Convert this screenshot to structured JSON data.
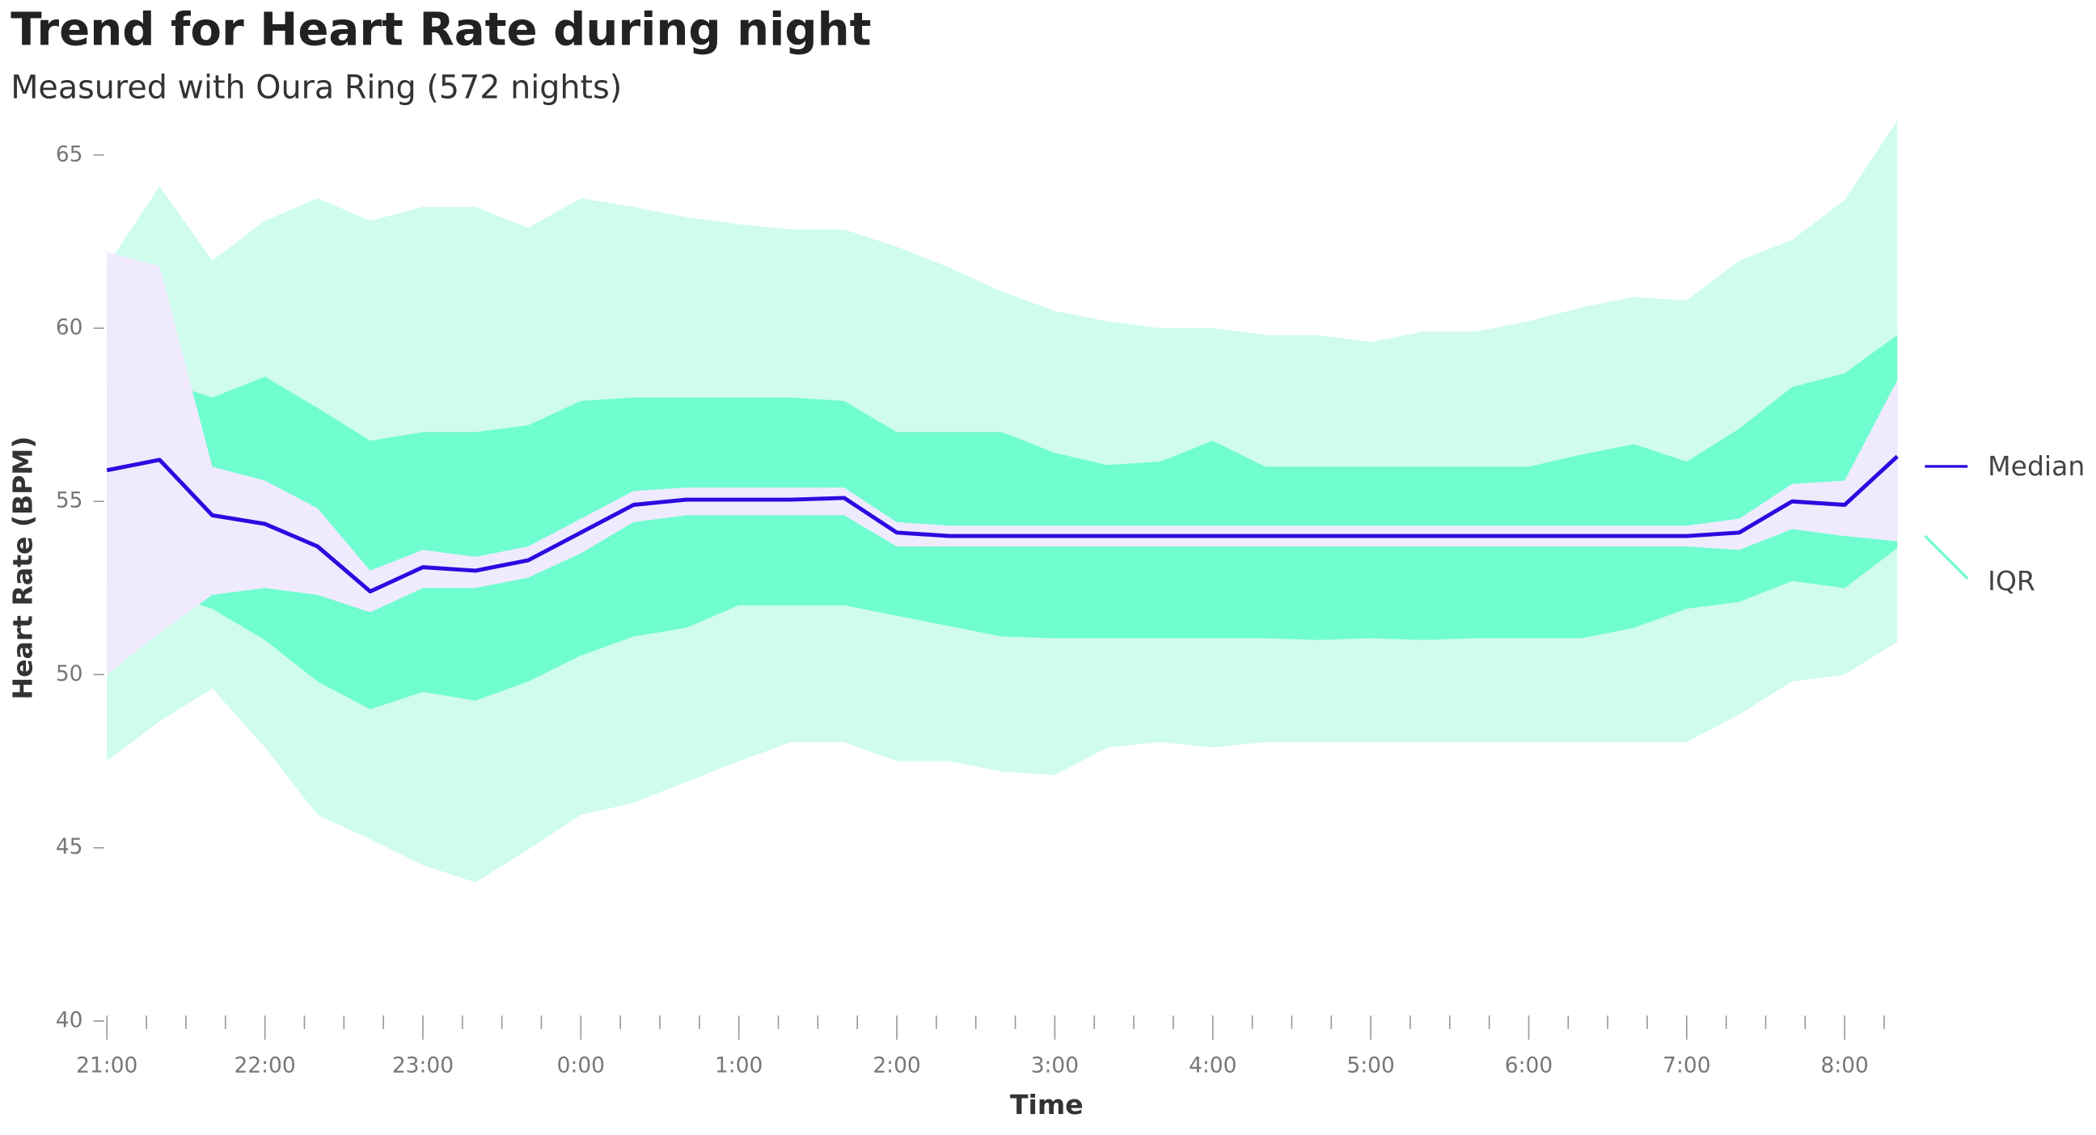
{
  "chart_data": {
    "type": "band-line",
    "title": "Trend for Heart Rate during night",
    "subtitle": "Measured with Oura Ring (572 nights)",
    "x_label": "Time",
    "y_label": "Heart Rate (BPM)",
    "x": [
      0,
      20,
      40,
      60,
      80,
      100,
      120,
      140,
      160,
      180,
      200,
      220,
      240,
      260,
      280,
      300,
      320,
      340,
      360,
      380,
      400,
      420,
      440,
      460,
      480,
      500,
      520,
      540,
      560,
      580,
      600,
      620,
      640,
      660,
      680
    ],
    "xlim": [
      0,
      685
    ],
    "xticks": [
      {
        "value": 0,
        "label": "21:00"
      },
      {
        "value": 60,
        "label": "22:00"
      },
      {
        "value": 120,
        "label": "23:00"
      },
      {
        "value": 180,
        "label": "0:00"
      },
      {
        "value": 240,
        "label": "1:00"
      },
      {
        "value": 300,
        "label": "2:00"
      },
      {
        "value": 360,
        "label": "3:00"
      },
      {
        "value": 420,
        "label": "4:00"
      },
      {
        "value": 480,
        "label": "5:00"
      },
      {
        "value": 540,
        "label": "6:00"
      },
      {
        "value": 600,
        "label": "7:00"
      },
      {
        "value": 660,
        "label": "8:00"
      }
    ],
    "xminorticks": [
      15,
      30,
      45,
      75,
      90,
      105,
      135,
      150,
      165,
      195,
      210,
      225,
      255,
      270,
      285,
      315,
      330,
      345,
      375,
      390,
      405,
      435,
      450,
      465,
      495,
      510,
      525,
      555,
      570,
      585,
      615,
      630,
      645,
      675
    ],
    "ylim": [
      40,
      65
    ],
    "yticks": [
      40,
      45,
      50,
      55,
      60,
      65
    ],
    "bands": [
      {
        "color": "#cffcec",
        "low": [
          47.5,
          48.65,
          49.6,
          47.9,
          45.95,
          45.25,
          44.5,
          44.0,
          44.95,
          45.95,
          46.3,
          46.9,
          47.5,
          48.05,
          48.05,
          47.5,
          47.5,
          47.2,
          47.1,
          47.9,
          48.05,
          47.9,
          48.05,
          48.05,
          48.05,
          48.05,
          48.05,
          48.05,
          48.05,
          48.05,
          48.05,
          48.85,
          49.8,
          50.0,
          50.95
        ],
        "high": [
          61.8,
          64.1,
          61.95,
          63.1,
          63.75,
          63.1,
          63.5,
          63.5,
          62.9,
          63.75,
          63.5,
          63.2,
          63.0,
          62.85,
          62.85,
          62.35,
          61.75,
          61.05,
          60.5,
          60.2,
          60.0,
          60.0,
          59.8,
          59.8,
          59.6,
          59.9,
          59.9,
          60.2,
          60.6,
          60.9,
          60.8,
          61.95,
          62.55,
          63.7,
          66.0
        ]
      }
    ],
    "series": [
      {
        "name": "IQR",
        "color": "#70fdd0",
        "low": [
          52.5,
          52.4,
          51.9,
          51.0,
          49.8,
          49.0,
          49.5,
          49.25,
          49.8,
          50.55,
          51.1,
          51.35,
          52.0,
          52.0,
          52.0,
          51.7,
          51.4,
          51.1,
          51.05,
          51.05,
          51.05,
          51.05,
          51.05,
          51.0,
          51.05,
          51.0,
          51.05,
          51.05,
          51.05,
          51.35,
          51.9,
          52.1,
          52.7,
          52.5,
          53.65
        ],
        "high": [
          58.5,
          58.5,
          58.0,
          58.6,
          57.7,
          56.75,
          57.0,
          57.0,
          57.2,
          57.9,
          58.0,
          58.0,
          58.0,
          58.0,
          57.9,
          57.0,
          57.0,
          57.0,
          56.4,
          56.05,
          56.15,
          56.75,
          56.0,
          56.0,
          56.0,
          56.0,
          56.0,
          56.0,
          56.35,
          56.65,
          56.15,
          57.1,
          58.3,
          58.7,
          59.8
        ]
      },
      {
        "name": "Median",
        "color": "#2a0ae0",
        "values": [
          55.9,
          56.2,
          54.6,
          54.35,
          53.7,
          52.4,
          53.1,
          53.0,
          53.3,
          54.1,
          54.9,
          55.05,
          55.05,
          55.05,
          55.1,
          54.1,
          54.0,
          54.0,
          54.0,
          54.0,
          54.0,
          54.0,
          54.0,
          54.0,
          54.0,
          54.0,
          54.0,
          54.0,
          54.0,
          54.0,
          54.0,
          54.1,
          55.0,
          54.9,
          56.3
        ]
      }
    ],
    "median_band": {
      "color": "#efeafd",
      "low": [
        50.0,
        51.2,
        52.3,
        52.5,
        52.3,
        51.8,
        52.5,
        52.5,
        52.8,
        53.5,
        54.4,
        54.6,
        54.6,
        54.6,
        54.6,
        53.7,
        53.7,
        53.7,
        53.7,
        53.7,
        53.7,
        53.7,
        53.7,
        53.7,
        53.7,
        53.7,
        53.7,
        53.7,
        53.7,
        53.7,
        53.7,
        53.6,
        54.2,
        54.0,
        53.85
      ],
      "high": [
        62.2,
        61.8,
        56.0,
        55.6,
        54.8,
        53.0,
        53.6,
        53.4,
        53.7,
        54.5,
        55.3,
        55.4,
        55.4,
        55.4,
        55.4,
        54.4,
        54.3,
        54.3,
        54.3,
        54.3,
        54.3,
        54.3,
        54.3,
        54.3,
        54.3,
        54.3,
        54.3,
        54.3,
        54.3,
        54.3,
        54.3,
        54.5,
        55.5,
        55.6,
        58.5
      ]
    }
  }
}
